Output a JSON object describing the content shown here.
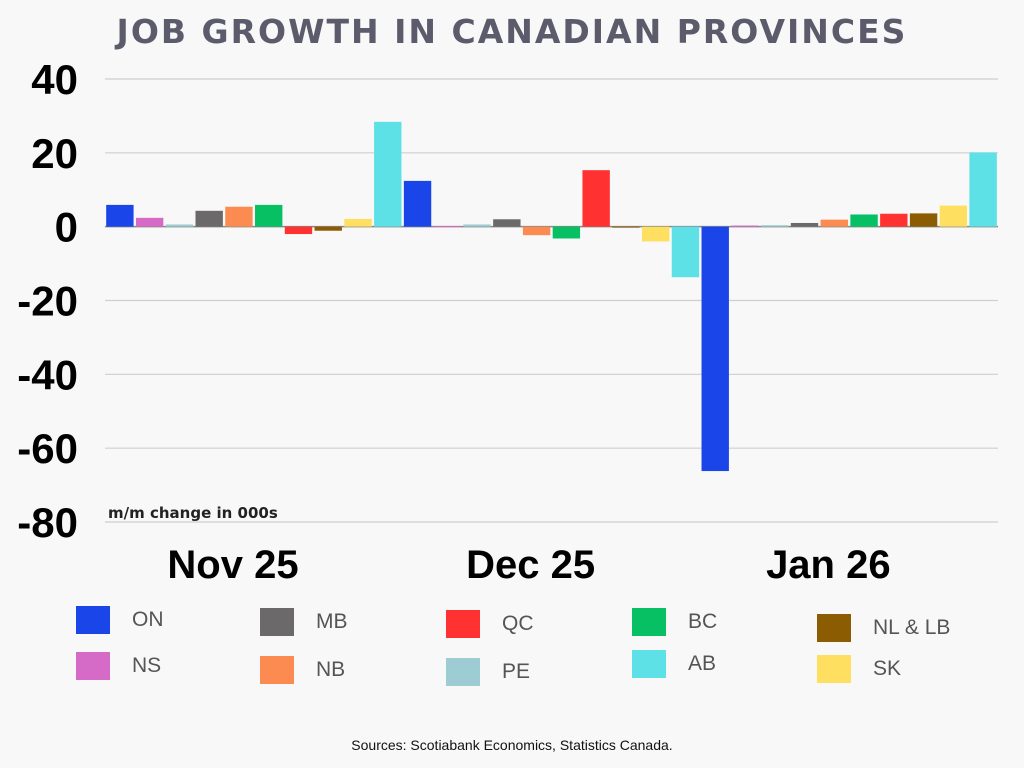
{
  "chart_data": {
    "type": "bar",
    "title": "JOB GROWTH IN CANADIAN PROVINCES",
    "categories": [
      "Nov 25",
      "Dec 25",
      "Jan 26"
    ],
    "ylim": [
      -80,
      40
    ],
    "yticks": [
      40,
      20,
      0,
      -20,
      -40,
      -60,
      -80
    ],
    "units_note": "m/m change in 000s",
    "grid": true,
    "legend_position": "bottom",
    "series": [
      {
        "name": "ON",
        "color": "#1a45e8",
        "values": [
          5.9,
          12.4,
          -66.2
        ]
      },
      {
        "name": "NS",
        "color": "#d56bc6",
        "values": [
          2.4,
          0.2,
          0.3
        ]
      },
      {
        "name": "PE",
        "color": "#9dcdd3",
        "values": [
          0.6,
          0.6,
          0.4
        ]
      },
      {
        "name": "MB",
        "color": "#6b6969",
        "values": [
          4.3,
          2.0,
          1.0
        ]
      },
      {
        "name": "NB",
        "color": "#fb8b50",
        "values": [
          5.4,
          -2.3,
          1.9
        ]
      },
      {
        "name": "BC",
        "color": "#08c064",
        "values": [
          5.9,
          -3.2,
          3.3
        ]
      },
      {
        "name": "QC",
        "color": "#ff3131",
        "values": [
          -2.0,
          15.3,
          3.5
        ]
      },
      {
        "name": "NL & LB",
        "color": "#8c5c03",
        "values": [
          -1.1,
          0.0,
          3.6
        ]
      },
      {
        "name": "SK",
        "color": "#ffdf5f",
        "values": [
          2.1,
          -4.0,
          5.7
        ]
      },
      {
        "name": "AB",
        "color": "#5de1e6",
        "values": [
          28.4,
          -13.7,
          20.1
        ]
      }
    ],
    "legend": [
      {
        "name": "ON",
        "color": "#1a45e8"
      },
      {
        "name": "NS",
        "color": "#d56bc6"
      },
      {
        "name": "MB",
        "color": "#6b6969"
      },
      {
        "name": "NB",
        "color": "#fb8b50"
      },
      {
        "name": "QC",
        "color": "#ff3131"
      },
      {
        "name": "PE",
        "color": "#9dcdd3"
      },
      {
        "name": "BC",
        "color": "#08c064"
      },
      {
        "name": "AB",
        "color": "#5de1e6"
      },
      {
        "name": "NL & LB",
        "color": "#8c5c03"
      },
      {
        "name": "SK",
        "color": "#ffdf5f"
      }
    ],
    "source": "Sources: Scotiabank Economics, Statistics Canada."
  }
}
